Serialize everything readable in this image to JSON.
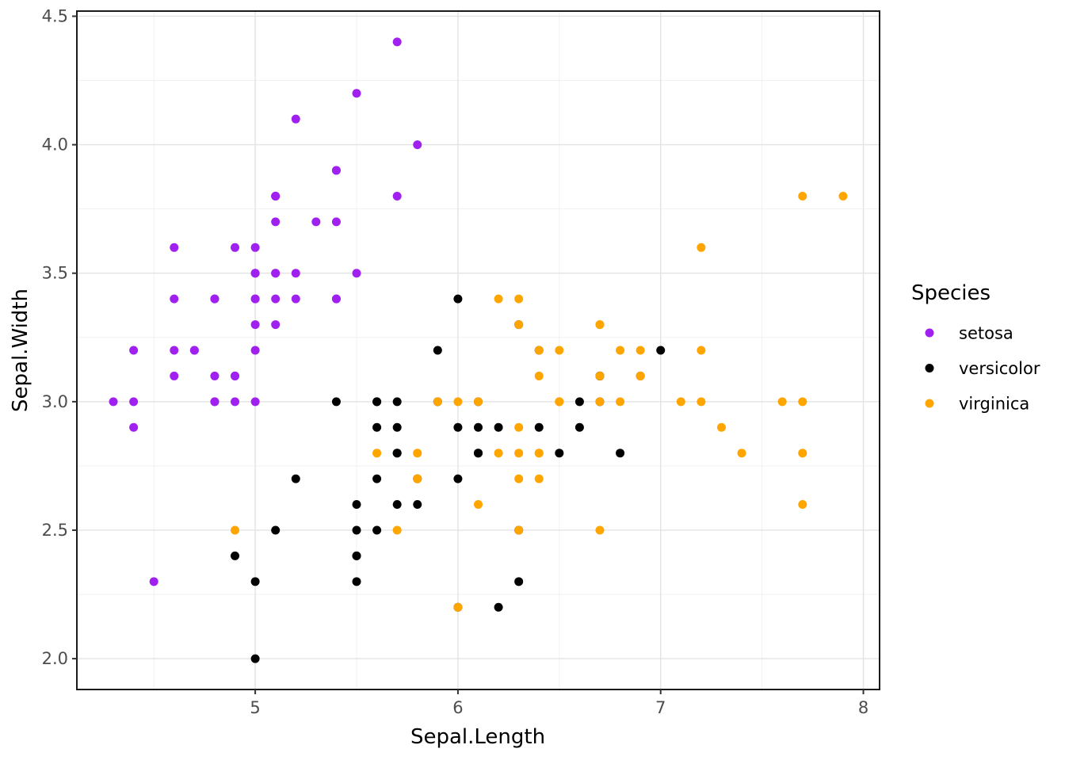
{
  "chart_data": {
    "type": "scatter",
    "title": "",
    "xlabel": "Sepal.Length",
    "ylabel": "Sepal.Width",
    "xlim": [
      4.12,
      8.08
    ],
    "ylim": [
      1.88,
      4.52
    ],
    "x_ticks": [
      5,
      6,
      7,
      8
    ],
    "x_tick_labels": [
      "5",
      "6",
      "7",
      "8"
    ],
    "x_minor_ticks": [
      4.5,
      5.5,
      6.5,
      7.5
    ],
    "y_ticks": [
      2.0,
      2.5,
      3.0,
      3.5,
      4.0,
      4.5
    ],
    "y_tick_labels": [
      "2.0",
      "2.5",
      "3.0",
      "3.5",
      "4.0",
      "4.5"
    ],
    "y_minor_ticks": [
      2.25,
      2.75,
      3.25,
      3.75,
      4.25
    ],
    "grid": true,
    "legend": {
      "title": "Species",
      "position": "right"
    },
    "style": {
      "background": "#FFFFFF",
      "grid_major_color": "#E3E3E3",
      "grid_minor_color": "#F1F1F1",
      "panel_border_color": "#1A1A1A",
      "tick_color": "#333333",
      "tick_label_color": "#4D4D4D",
      "point_radius": 5.5
    },
    "series": [
      {
        "name": "setosa",
        "color": "#A020F0",
        "points": [
          [
            5.1,
            3.5
          ],
          [
            4.9,
            3.0
          ],
          [
            4.7,
            3.2
          ],
          [
            4.6,
            3.1
          ],
          [
            5.0,
            3.6
          ],
          [
            5.4,
            3.9
          ],
          [
            4.6,
            3.4
          ],
          [
            5.0,
            3.4
          ],
          [
            4.4,
            2.9
          ],
          [
            4.9,
            3.1
          ],
          [
            5.4,
            3.7
          ],
          [
            4.8,
            3.4
          ],
          [
            4.8,
            3.0
          ],
          [
            4.3,
            3.0
          ],
          [
            5.8,
            4.0
          ],
          [
            5.7,
            4.4
          ],
          [
            5.4,
            3.9
          ],
          [
            5.1,
            3.5
          ],
          [
            5.7,
            3.8
          ],
          [
            5.1,
            3.8
          ],
          [
            5.4,
            3.4
          ],
          [
            5.1,
            3.7
          ],
          [
            4.6,
            3.6
          ],
          [
            5.1,
            3.3
          ],
          [
            4.8,
            3.4
          ],
          [
            5.0,
            3.0
          ],
          [
            5.0,
            3.4
          ],
          [
            5.2,
            3.5
          ],
          [
            5.2,
            3.4
          ],
          [
            4.7,
            3.2
          ],
          [
            4.8,
            3.1
          ],
          [
            5.4,
            3.4
          ],
          [
            5.2,
            4.1
          ],
          [
            5.5,
            4.2
          ],
          [
            4.9,
            3.1
          ],
          [
            5.0,
            3.2
          ],
          [
            5.5,
            3.5
          ],
          [
            4.9,
            3.6
          ],
          [
            4.4,
            3.0
          ],
          [
            5.1,
            3.4
          ],
          [
            5.0,
            3.5
          ],
          [
            4.5,
            2.3
          ],
          [
            4.4,
            3.2
          ],
          [
            5.0,
            3.5
          ],
          [
            5.1,
            3.8
          ],
          [
            4.8,
            3.0
          ],
          [
            5.1,
            3.8
          ],
          [
            4.6,
            3.2
          ],
          [
            5.3,
            3.7
          ],
          [
            5.0,
            3.3
          ]
        ]
      },
      {
        "name": "versicolor",
        "color": "#000000",
        "points": [
          [
            7.0,
            3.2
          ],
          [
            6.4,
            3.2
          ],
          [
            6.9,
            3.1
          ],
          [
            5.5,
            2.3
          ],
          [
            6.5,
            2.8
          ],
          [
            5.7,
            2.8
          ],
          [
            6.3,
            3.3
          ],
          [
            4.9,
            2.4
          ],
          [
            6.6,
            2.9
          ],
          [
            5.2,
            2.7
          ],
          [
            5.0,
            2.0
          ],
          [
            5.9,
            3.0
          ],
          [
            6.0,
            2.2
          ],
          [
            6.1,
            2.9
          ],
          [
            5.6,
            2.9
          ],
          [
            6.7,
            3.1
          ],
          [
            5.6,
            3.0
          ],
          [
            5.8,
            2.7
          ],
          [
            6.2,
            2.2
          ],
          [
            5.6,
            2.5
          ],
          [
            5.9,
            3.2
          ],
          [
            6.1,
            2.8
          ],
          [
            6.3,
            2.5
          ],
          [
            6.1,
            2.8
          ],
          [
            6.4,
            2.9
          ],
          [
            6.6,
            3.0
          ],
          [
            6.8,
            2.8
          ],
          [
            6.7,
            3.0
          ],
          [
            6.0,
            2.9
          ],
          [
            5.7,
            2.6
          ],
          [
            5.5,
            2.4
          ],
          [
            5.5,
            2.4
          ],
          [
            5.8,
            2.7
          ],
          [
            6.0,
            2.7
          ],
          [
            5.4,
            3.0
          ],
          [
            6.0,
            3.4
          ],
          [
            6.7,
            3.1
          ],
          [
            6.3,
            2.3
          ],
          [
            5.6,
            3.0
          ],
          [
            5.5,
            2.5
          ],
          [
            5.5,
            2.6
          ],
          [
            6.1,
            3.0
          ],
          [
            5.8,
            2.6
          ],
          [
            5.0,
            2.3
          ],
          [
            5.6,
            2.7
          ],
          [
            5.7,
            3.0
          ],
          [
            5.7,
            2.9
          ],
          [
            6.2,
            2.9
          ],
          [
            5.1,
            2.5
          ],
          [
            5.7,
            2.8
          ]
        ]
      },
      {
        "name": "virginica",
        "color": "#FFA500",
        "points": [
          [
            6.3,
            3.3
          ],
          [
            5.8,
            2.7
          ],
          [
            7.1,
            3.0
          ],
          [
            6.3,
            2.9
          ],
          [
            6.5,
            3.0
          ],
          [
            7.6,
            3.0
          ],
          [
            4.9,
            2.5
          ],
          [
            7.3,
            2.9
          ],
          [
            6.7,
            2.5
          ],
          [
            7.2,
            3.6
          ],
          [
            6.5,
            3.2
          ],
          [
            6.4,
            2.7
          ],
          [
            6.8,
            3.0
          ],
          [
            5.7,
            2.5
          ],
          [
            5.8,
            2.8
          ],
          [
            6.4,
            3.2
          ],
          [
            6.5,
            3.0
          ],
          [
            7.7,
            3.8
          ],
          [
            7.7,
            2.6
          ],
          [
            6.0,
            2.2
          ],
          [
            6.9,
            3.2
          ],
          [
            5.6,
            2.8
          ],
          [
            7.7,
            2.8
          ],
          [
            6.3,
            2.7
          ],
          [
            6.7,
            3.3
          ],
          [
            7.2,
            3.2
          ],
          [
            6.2,
            2.8
          ],
          [
            6.1,
            3.0
          ],
          [
            6.4,
            2.8
          ],
          [
            7.2,
            3.0
          ],
          [
            7.4,
            2.8
          ],
          [
            7.9,
            3.8
          ],
          [
            6.4,
            2.8
          ],
          [
            6.3,
            2.8
          ],
          [
            6.1,
            2.6
          ],
          [
            7.7,
            3.0
          ],
          [
            6.3,
            3.4
          ],
          [
            6.4,
            3.1
          ],
          [
            6.0,
            3.0
          ],
          [
            6.9,
            3.1
          ],
          [
            6.7,
            3.1
          ],
          [
            6.9,
            3.1
          ],
          [
            5.8,
            2.7
          ],
          [
            6.8,
            3.2
          ],
          [
            6.7,
            3.3
          ],
          [
            6.7,
            3.0
          ],
          [
            6.3,
            2.5
          ],
          [
            6.5,
            3.0
          ],
          [
            6.2,
            3.4
          ],
          [
            5.9,
            3.0
          ]
        ]
      }
    ]
  }
}
